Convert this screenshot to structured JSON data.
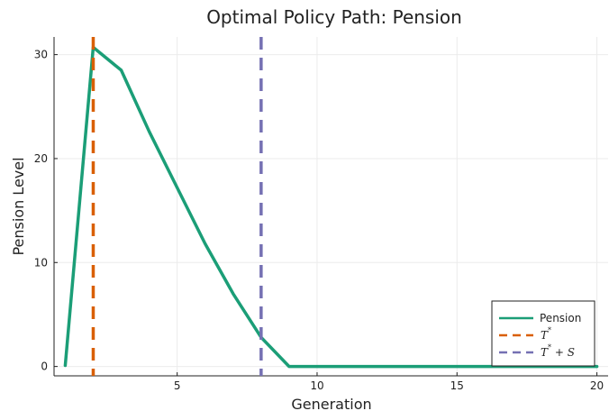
{
  "chart_data": {
    "type": "line",
    "title": "Optimal Policy Path: Pension",
    "xlabel": "Generation",
    "ylabel": "Pension Level",
    "xlim": [
      0.6,
      20.4
    ],
    "ylim": [
      -0.9,
      31.7
    ],
    "x_ticks": [
      5,
      10,
      15,
      20
    ],
    "y_ticks": [
      0,
      10,
      20,
      30
    ],
    "grid": true,
    "legend_position": "bottom-right",
    "series": [
      {
        "name": "Pension",
        "color": "#1b9e77",
        "style": "solid",
        "x": [
          1,
          2,
          3,
          4,
          5,
          6,
          7,
          8,
          9,
          10,
          11,
          12,
          13,
          14,
          15,
          16,
          17,
          18,
          19,
          20
        ],
        "y": [
          0.1,
          30.7,
          28.5,
          22.6,
          17.2,
          11.8,
          7.0,
          2.8,
          0.0,
          0.0,
          0.0,
          0.0,
          0.0,
          0.0,
          0.0,
          0.0,
          0.0,
          0.0,
          0.0,
          0.0
        ]
      }
    ],
    "vlines": [
      {
        "label_main": "T",
        "label_sup": "*",
        "label_rest": "",
        "x": 2,
        "color": "#d95f02",
        "style": "dashed"
      },
      {
        "label_main": "T",
        "label_sup": "*",
        "label_rest": " + S",
        "x": 8,
        "color": "#7570b3",
        "style": "dashed"
      }
    ]
  }
}
